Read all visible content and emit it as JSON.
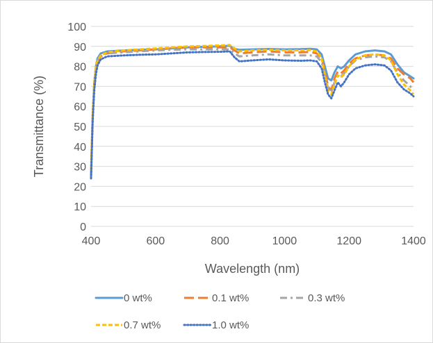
{
  "chart_data": {
    "type": "line",
    "title": "",
    "xlabel": "Wavelength (nm)",
    "ylabel": "Transmittance (%)",
    "xlim": [
      400,
      1400
    ],
    "ylim": [
      0,
      100
    ],
    "x_ticks": [
      400,
      600,
      800,
      1000,
      1200,
      1400
    ],
    "y_ticks": [
      0,
      10,
      20,
      30,
      40,
      50,
      60,
      70,
      80,
      90,
      100
    ],
    "grid": "horizontal",
    "legend_position": "bottom",
    "series": [
      {
        "name": "0 wt%",
        "color": "#5b9bd5",
        "dash": "solid",
        "points": [
          [
            400,
            25
          ],
          [
            405,
            55
          ],
          [
            410,
            72
          ],
          [
            415,
            80
          ],
          [
            420,
            84
          ],
          [
            430,
            86.5
          ],
          [
            450,
            87.5
          ],
          [
            500,
            88
          ],
          [
            550,
            88.3
          ],
          [
            600,
            88.5
          ],
          [
            650,
            89
          ],
          [
            700,
            89.5
          ],
          [
            750,
            89.8
          ],
          [
            800,
            90
          ],
          [
            830,
            90.3
          ],
          [
            840,
            89
          ],
          [
            860,
            88.3
          ],
          [
            900,
            88.5
          ],
          [
            950,
            88.7
          ],
          [
            1000,
            88.5
          ],
          [
            1050,
            88.6
          ],
          [
            1080,
            88.8
          ],
          [
            1100,
            88.5
          ],
          [
            1115,
            86
          ],
          [
            1125,
            80
          ],
          [
            1135,
            74
          ],
          [
            1145,
            73
          ],
          [
            1155,
            77
          ],
          [
            1165,
            80
          ],
          [
            1175,
            79
          ],
          [
            1185,
            80
          ],
          [
            1200,
            83
          ],
          [
            1220,
            86
          ],
          [
            1250,
            87.5
          ],
          [
            1280,
            88
          ],
          [
            1310,
            87.5
          ],
          [
            1330,
            86
          ],
          [
            1350,
            81
          ],
          [
            1370,
            77
          ],
          [
            1390,
            75
          ],
          [
            1400,
            74
          ]
        ]
      },
      {
        "name": "0.1 wt%",
        "color": "#ed7d31",
        "dash": "long-dash",
        "points": [
          [
            400,
            26
          ],
          [
            405,
            54
          ],
          [
            410,
            70
          ],
          [
            415,
            78
          ],
          [
            420,
            82
          ],
          [
            430,
            85
          ],
          [
            450,
            86.5
          ],
          [
            500,
            87.5
          ],
          [
            550,
            88
          ],
          [
            600,
            88.5
          ],
          [
            650,
            89
          ],
          [
            700,
            89.5
          ],
          [
            750,
            89.5
          ],
          [
            800,
            89.5
          ],
          [
            830,
            89.5
          ],
          [
            845,
            88
          ],
          [
            860,
            86.5
          ],
          [
            900,
            87
          ],
          [
            950,
            87.5
          ],
          [
            1000,
            87
          ],
          [
            1050,
            87
          ],
          [
            1080,
            87.2
          ],
          [
            1100,
            86.5
          ],
          [
            1115,
            84
          ],
          [
            1125,
            78
          ],
          [
            1135,
            70
          ],
          [
            1145,
            68
          ],
          [
            1155,
            74
          ],
          [
            1165,
            77.5
          ],
          [
            1175,
            76.5
          ],
          [
            1185,
            78
          ],
          [
            1200,
            81.5
          ],
          [
            1220,
            84
          ],
          [
            1250,
            85.5
          ],
          [
            1280,
            86
          ],
          [
            1310,
            85.5
          ],
          [
            1330,
            84
          ],
          [
            1350,
            79
          ],
          [
            1370,
            76
          ],
          [
            1390,
            74
          ],
          [
            1400,
            72
          ]
        ]
      },
      {
        "name": "0.3 wt%",
        "color": "#a5a5a5",
        "dash": "dash-dot",
        "points": [
          [
            400,
            27
          ],
          [
            405,
            55
          ],
          [
            410,
            71
          ],
          [
            415,
            79
          ],
          [
            420,
            83
          ],
          [
            430,
            85.5
          ],
          [
            450,
            86.5
          ],
          [
            500,
            87
          ],
          [
            550,
            87.5
          ],
          [
            600,
            88
          ],
          [
            650,
            88.3
          ],
          [
            700,
            88.5
          ],
          [
            750,
            88.5
          ],
          [
            800,
            88.5
          ],
          [
            830,
            88.5
          ],
          [
            845,
            86.5
          ],
          [
            860,
            85
          ],
          [
            900,
            85.5
          ],
          [
            950,
            86
          ],
          [
            1000,
            85.5
          ],
          [
            1050,
            85.5
          ],
          [
            1080,
            85.5
          ],
          [
            1100,
            85
          ],
          [
            1115,
            82
          ],
          [
            1125,
            76
          ],
          [
            1135,
            69
          ],
          [
            1145,
            67
          ],
          [
            1155,
            72
          ],
          [
            1165,
            76
          ],
          [
            1175,
            75
          ],
          [
            1185,
            76.5
          ],
          [
            1200,
            80
          ],
          [
            1220,
            83
          ],
          [
            1250,
            84.5
          ],
          [
            1280,
            85
          ],
          [
            1310,
            84.5
          ],
          [
            1330,
            82.5
          ],
          [
            1350,
            77
          ],
          [
            1370,
            73
          ],
          [
            1390,
            70
          ],
          [
            1400,
            68
          ]
        ]
      },
      {
        "name": "0.7 wt%",
        "color": "#ffc000",
        "dash": "short-dash",
        "points": [
          [
            400,
            28
          ],
          [
            405,
            56
          ],
          [
            410,
            72
          ],
          [
            415,
            79.5
          ],
          [
            420,
            83
          ],
          [
            430,
            85.5
          ],
          [
            450,
            87
          ],
          [
            500,
            88
          ],
          [
            550,
            88.5
          ],
          [
            600,
            89
          ],
          [
            650,
            89.5
          ],
          [
            700,
            90
          ],
          [
            750,
            90.2
          ],
          [
            800,
            90.5
          ],
          [
            830,
            90.7
          ],
          [
            845,
            89
          ],
          [
            860,
            87.5
          ],
          [
            900,
            88
          ],
          [
            950,
            88.3
          ],
          [
            1000,
            88
          ],
          [
            1050,
            88
          ],
          [
            1080,
            88.2
          ],
          [
            1100,
            87.5
          ],
          [
            1115,
            84
          ],
          [
            1125,
            76
          ],
          [
            1135,
            67
          ],
          [
            1145,
            66
          ],
          [
            1155,
            71
          ],
          [
            1165,
            75.5
          ],
          [
            1175,
            74.5
          ],
          [
            1185,
            76
          ],
          [
            1200,
            80
          ],
          [
            1220,
            83.5
          ],
          [
            1250,
            85.5
          ],
          [
            1280,
            86
          ],
          [
            1310,
            85.5
          ],
          [
            1330,
            83
          ],
          [
            1350,
            76
          ],
          [
            1370,
            71
          ],
          [
            1390,
            68
          ],
          [
            1400,
            66
          ]
        ]
      },
      {
        "name": "1.0 wt%",
        "color": "#4472c4",
        "dash": "dotted",
        "points": [
          [
            400,
            24
          ],
          [
            405,
            52
          ],
          [
            410,
            68
          ],
          [
            415,
            76
          ],
          [
            420,
            80.5
          ],
          [
            430,
            83.5
          ],
          [
            450,
            85
          ],
          [
            500,
            85.5
          ],
          [
            550,
            85.8
          ],
          [
            600,
            86
          ],
          [
            650,
            86.5
          ],
          [
            700,
            87
          ],
          [
            750,
            87.2
          ],
          [
            800,
            87.3
          ],
          [
            830,
            87.5
          ],
          [
            845,
            84.5
          ],
          [
            860,
            82.5
          ],
          [
            900,
            83
          ],
          [
            950,
            83.5
          ],
          [
            1000,
            83
          ],
          [
            1050,
            82.8
          ],
          [
            1080,
            83
          ],
          [
            1100,
            82.5
          ],
          [
            1115,
            79
          ],
          [
            1125,
            72
          ],
          [
            1135,
            66
          ],
          [
            1145,
            64
          ],
          [
            1155,
            68
          ],
          [
            1165,
            72
          ],
          [
            1175,
            70
          ],
          [
            1185,
            72
          ],
          [
            1200,
            76
          ],
          [
            1220,
            79
          ],
          [
            1250,
            80.5
          ],
          [
            1280,
            81
          ],
          [
            1310,
            80.5
          ],
          [
            1330,
            78
          ],
          [
            1350,
            72
          ],
          [
            1370,
            68.5
          ],
          [
            1390,
            66.5
          ],
          [
            1400,
            65
          ]
        ]
      }
    ]
  }
}
